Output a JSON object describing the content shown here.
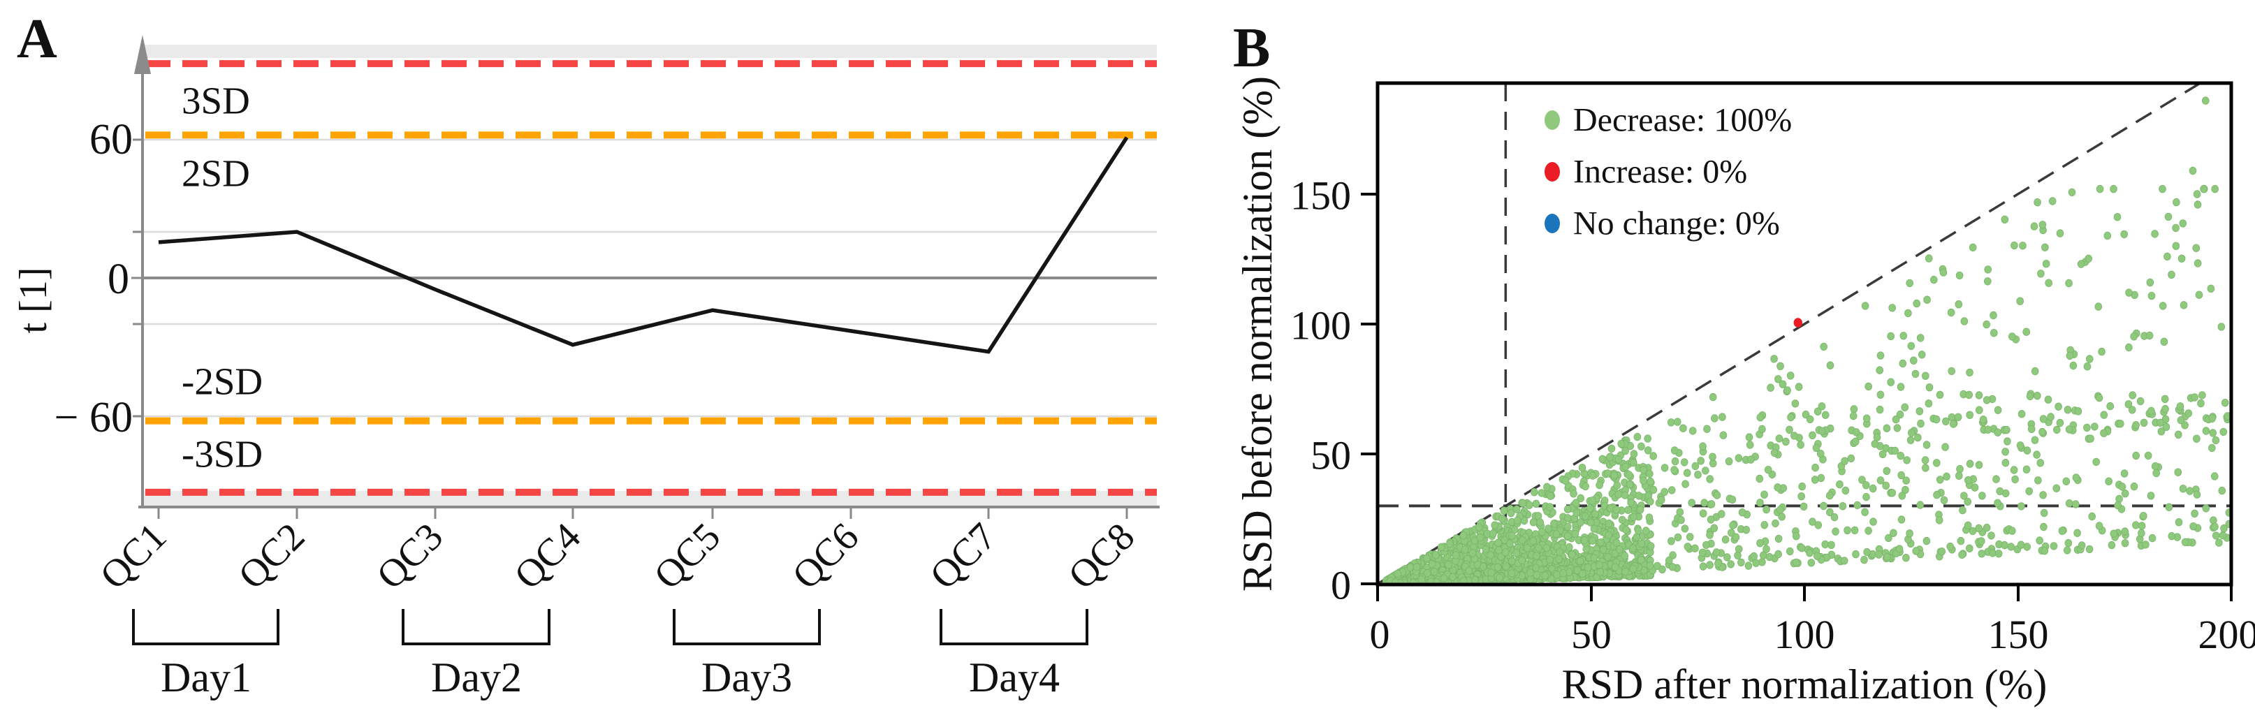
{
  "chart_data": [
    {
      "type": "line",
      "panel_label": "A",
      "ylabel": "t [1]",
      "categories": [
        "QC1",
        "QC2",
        "QC3",
        "QC4",
        "QC5",
        "QC6",
        "QC7",
        "QC8"
      ],
      "values": [
        15.5,
        20,
        -5,
        -29,
        -14,
        -23,
        -32,
        61
      ],
      "ylim": [
        -100,
        100
      ],
      "y_tick_values": [
        60,
        0,
        -60
      ],
      "y_tick_labels": [
        "60",
        "0",
        "− 60"
      ],
      "gridline_values": [
        60,
        20,
        -20,
        -60
      ],
      "zero_line_value": 0,
      "control_lines": [
        {
          "label": "3SD",
          "value": 93,
          "color": "#f54545"
        },
        {
          "label": "2SD",
          "value": 62,
          "color": "#ffa402"
        },
        {
          "label": "-2SD",
          "value": -62,
          "color": "#ffa402"
        },
        {
          "label": "-3SD",
          "value": -93,
          "color": "#f54545"
        }
      ],
      "control_label_color": "#fa0505",
      "day_groups": [
        "Day1",
        "Day2",
        "Day3",
        "Day4"
      ],
      "line_color": "#151515",
      "legend_position": "none",
      "grid": "horizontal-light"
    },
    {
      "type": "scatter",
      "panel_label": "B",
      "xlabel": "RSD after normalization (%)",
      "ylabel": "RSD before normalization (%)",
      "xlim": [
        0,
        200
      ],
      "ylim": [
        0,
        193
      ],
      "x_tick_values": [
        0,
        50,
        100,
        150,
        200
      ],
      "x_tick_labels": [
        "0",
        "50",
        "100",
        "150",
        "200"
      ],
      "y_tick_values": [
        0,
        50,
        100,
        150
      ],
      "y_tick_labels": [
        "0",
        "50",
        "100",
        "150"
      ],
      "reference_lines": {
        "diagonal": "y = x",
        "threshold_x": 30,
        "threshold_y": 30
      },
      "legend_position": "upper-left-inside",
      "legend": [
        {
          "label": "Decrease: 100%",
          "color": "#8fc97e"
        },
        {
          "label": "Increase: 0%",
          "color": "#ec1c24"
        },
        {
          "label": "No change: 0%",
          "color": "#1a75bc"
        }
      ],
      "series": [
        {
          "name": "Decrease",
          "color": "#8fc97e",
          "point_count": 2396,
          "distribution": "dense wedge of light-green points lying below the y=x diagonal; densest near the origin for x<60, a thick band up to y~60-75 for larger x, sparser points rising toward the diagonal",
          "generation": {
            "seed": 11,
            "clusters": [
              {
                "name": "core",
                "count": 1500
              },
              {
                "name": "band",
                "count": 730
              },
              {
                "name": "upper",
                "count": 153
              }
            ]
          },
          "edge_points": [
            [
              194,
              186
            ],
            [
              191,
              159
            ],
            [
              192,
              150
            ],
            [
              187,
              137
            ],
            [
              171,
              134
            ],
            [
              185,
              126
            ],
            [
              186,
              119
            ],
            [
              181,
              116
            ],
            [
              184,
              107
            ],
            [
              152,
              97
            ],
            [
              143,
              121
            ],
            [
              176,
              91
            ],
            [
              163,
              84
            ]
          ]
        },
        {
          "name": "Increase",
          "color": "#ec1c24",
          "points": [
            [
              98.5,
              100.5
            ]
          ]
        },
        {
          "name": "No change",
          "color": "#1a75bc",
          "points": []
        }
      ]
    }
  ]
}
